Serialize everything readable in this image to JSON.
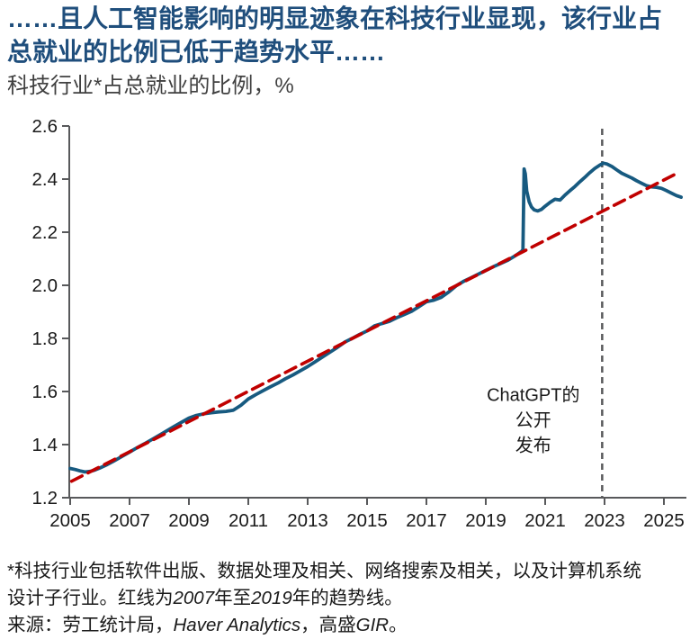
{
  "header": {
    "title_line1": "……且人工智能影响的明显迹象在科技行业显现，该行业占",
    "title_line2": "总就业的比例已低于趋势水平……",
    "subtitle": "科技行业*占总就业的比例，%"
  },
  "chart_data": {
    "type": "line",
    "title": "科技行业占总就业的比例",
    "xlabel": "",
    "ylabel": "%",
    "xlim": [
      2004.97,
      2025.76
    ],
    "ylim": [
      1.2,
      2.6
    ],
    "grid": false,
    "legend_position": "none",
    "x_ticks": [
      {
        "v": 2005,
        "label": "2005"
      },
      {
        "v": 2007,
        "label": "2007"
      },
      {
        "v": 2009,
        "label": "2009"
      },
      {
        "v": 2011,
        "label": "2011"
      },
      {
        "v": 2013,
        "label": "2013"
      },
      {
        "v": 2015,
        "label": "2015"
      },
      {
        "v": 2017,
        "label": "2017"
      },
      {
        "v": 2019,
        "label": "2019"
      },
      {
        "v": 2021,
        "label": "2021"
      },
      {
        "v": 2023,
        "label": "2023"
      },
      {
        "v": 2025,
        "label": "2025"
      }
    ],
    "y_ticks": [
      {
        "v": 1.2,
        "label": "1.2"
      },
      {
        "v": 1.4,
        "label": "1.4"
      },
      {
        "v": 1.6,
        "label": "1.6"
      },
      {
        "v": 1.8,
        "label": "1.8"
      },
      {
        "v": 2.0,
        "label": "2.0"
      },
      {
        "v": 2.2,
        "label": "2.2"
      },
      {
        "v": 2.4,
        "label": "2.4"
      },
      {
        "v": 2.6,
        "label": "2.6"
      }
    ],
    "series": [
      {
        "name": "科技行业占总就业的比例",
        "color": "#175a80",
        "style": "solid",
        "width": 3.8,
        "points": [
          [
            2005.0,
            1.31
          ],
          [
            2005.17,
            1.306
          ],
          [
            2005.33,
            1.301
          ],
          [
            2005.5,
            1.297
          ],
          [
            2005.67,
            1.299
          ],
          [
            2005.83,
            1.304
          ],
          [
            2006.0,
            1.312
          ],
          [
            2006.25,
            1.325
          ],
          [
            2006.5,
            1.34
          ],
          [
            2006.75,
            1.356
          ],
          [
            2007.0,
            1.372
          ],
          [
            2007.25,
            1.388
          ],
          [
            2007.5,
            1.403
          ],
          [
            2007.75,
            1.419
          ],
          [
            2008.0,
            1.435
          ],
          [
            2008.25,
            1.452
          ],
          [
            2008.5,
            1.468
          ],
          [
            2008.75,
            1.484
          ],
          [
            2009.0,
            1.5
          ],
          [
            2009.25,
            1.51
          ],
          [
            2009.5,
            1.516
          ],
          [
            2009.75,
            1.52
          ],
          [
            2010.0,
            1.523
          ],
          [
            2010.25,
            1.525
          ],
          [
            2010.5,
            1.53
          ],
          [
            2010.75,
            1.548
          ],
          [
            2011.0,
            1.572
          ],
          [
            2011.25,
            1.588
          ],
          [
            2011.5,
            1.603
          ],
          [
            2011.75,
            1.618
          ],
          [
            2012.0,
            1.632
          ],
          [
            2012.25,
            1.648
          ],
          [
            2012.5,
            1.662
          ],
          [
            2012.75,
            1.678
          ],
          [
            2013.0,
            1.694
          ],
          [
            2013.25,
            1.712
          ],
          [
            2013.5,
            1.73
          ],
          [
            2013.75,
            1.748
          ],
          [
            2014.0,
            1.766
          ],
          [
            2014.25,
            1.786
          ],
          [
            2014.5,
            1.8
          ],
          [
            2014.75,
            1.815
          ],
          [
            2015.0,
            1.828
          ],
          [
            2015.25,
            1.847
          ],
          [
            2015.5,
            1.856
          ],
          [
            2015.75,
            1.864
          ],
          [
            2016.0,
            1.878
          ],
          [
            2016.25,
            1.89
          ],
          [
            2016.5,
            1.902
          ],
          [
            2016.75,
            1.92
          ],
          [
            2017.0,
            1.938
          ],
          [
            2017.25,
            1.944
          ],
          [
            2017.5,
            1.955
          ],
          [
            2017.75,
            1.975
          ],
          [
            2018.0,
            1.998
          ],
          [
            2018.25,
            2.015
          ],
          [
            2018.5,
            2.028
          ],
          [
            2018.75,
            2.042
          ],
          [
            2019.0,
            2.056
          ],
          [
            2019.25,
            2.07
          ],
          [
            2019.5,
            2.082
          ],
          [
            2019.75,
            2.095
          ],
          [
            2020.0,
            2.112
          ],
          [
            2020.13,
            2.122
          ],
          [
            2020.21,
            2.128
          ],
          [
            2020.25,
            2.135
          ],
          [
            2020.29,
            2.438
          ],
          [
            2020.33,
            2.42
          ],
          [
            2020.38,
            2.355
          ],
          [
            2020.46,
            2.315
          ],
          [
            2020.54,
            2.295
          ],
          [
            2020.63,
            2.284
          ],
          [
            2020.75,
            2.28
          ],
          [
            2020.88,
            2.286
          ],
          [
            2021.0,
            2.298
          ],
          [
            2021.17,
            2.313
          ],
          [
            2021.33,
            2.324
          ],
          [
            2021.5,
            2.321
          ],
          [
            2021.67,
            2.34
          ],
          [
            2021.83,
            2.356
          ],
          [
            2022.0,
            2.372
          ],
          [
            2022.17,
            2.39
          ],
          [
            2022.33,
            2.406
          ],
          [
            2022.5,
            2.424
          ],
          [
            2022.67,
            2.44
          ],
          [
            2022.83,
            2.452
          ],
          [
            2022.96,
            2.46
          ],
          [
            2023.08,
            2.457
          ],
          [
            2023.25,
            2.447
          ],
          [
            2023.42,
            2.434
          ],
          [
            2023.58,
            2.422
          ],
          [
            2023.75,
            2.413
          ],
          [
            2023.92,
            2.404
          ],
          [
            2024.08,
            2.394
          ],
          [
            2024.25,
            2.384
          ],
          [
            2024.42,
            2.375
          ],
          [
            2024.58,
            2.371
          ],
          [
            2024.75,
            2.369
          ],
          [
            2024.92,
            2.365
          ],
          [
            2025.08,
            2.357
          ],
          [
            2025.25,
            2.347
          ],
          [
            2025.42,
            2.338
          ],
          [
            2025.58,
            2.332
          ]
        ]
      },
      {
        "name": "趋势线（2007年至2019年）",
        "color": "#c00000",
        "style": "dashed",
        "width": 3.6,
        "points": [
          [
            2005.05,
            1.262
          ],
          [
            2025.5,
            2.425
          ]
        ]
      }
    ],
    "vline": {
      "x": 2022.92,
      "color": "#58595b",
      "label": "ChatGPT公开发布"
    },
    "annotation": {
      "x": 2020.6,
      "y": 1.585,
      "lines": [
        "ChatGPT的",
        "公开",
        "发布"
      ],
      "color": "#1a1a1a"
    }
  },
  "colors": {
    "headline": "#1f4e7c",
    "subtitle": "#404040",
    "series_blue": "#175a80",
    "trend_red": "#c00000",
    "vline_gray": "#58595b",
    "axis": "#58595b",
    "tick_label": "#1a1a1a"
  },
  "footnote": {
    "line1_parts": [
      {
        "text": "*科技行业包括软件出版、数据处理及相关、网络搜索及相关，以及计算机系统",
        "italic": false
      }
    ],
    "line2_parts": [
      {
        "text": "设计子行业。红线为",
        "italic": false
      },
      {
        "text": "2007",
        "italic": true
      },
      {
        "text": "年至",
        "italic": false
      },
      {
        "text": "2019",
        "italic": true
      },
      {
        "text": "年的趋势线。",
        "italic": false
      }
    ],
    "source_parts": [
      {
        "text": "来源：劳工统计局，",
        "italic": false
      },
      {
        "text": "Haver Analytics",
        "italic": true
      },
      {
        "text": "，高盛",
        "italic": false
      },
      {
        "text": "GIR",
        "italic": true
      },
      {
        "text": "。",
        "italic": false
      }
    ]
  }
}
